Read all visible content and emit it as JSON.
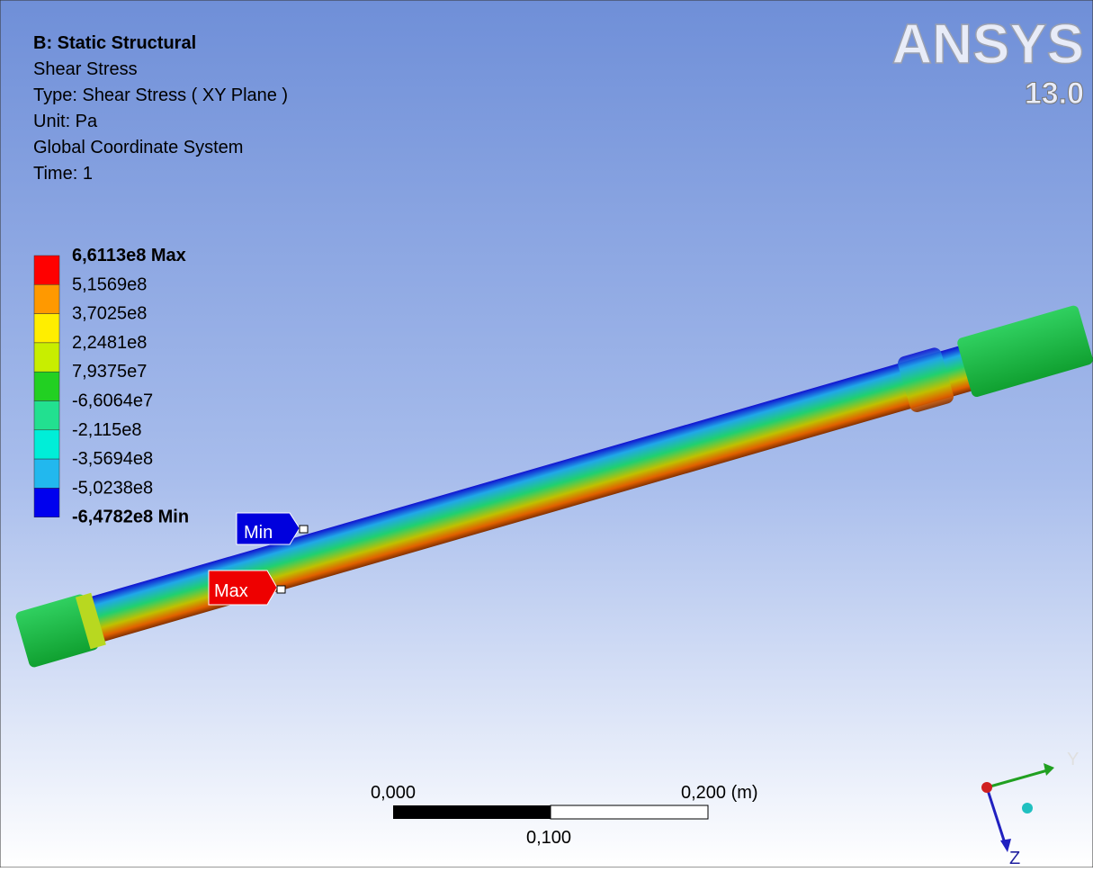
{
  "header": {
    "title": "B: Static Structural",
    "lines": [
      "Shear Stress",
      "Type: Shear Stress ( XY Plane )",
      "Unit: Pa",
      "Global Coordinate System",
      "Time: 1"
    ]
  },
  "logo": {
    "name": "ANSYS",
    "version": "13.0"
  },
  "legend": {
    "labels": [
      "6,6113e8 Max",
      "5,1569e8",
      "3,7025e8",
      "2,2481e8",
      "7,9375e7",
      "-6,6064e7",
      "-2,115e8",
      "-3,5694e8",
      "-5,0238e8",
      "-6,4782e8 Min"
    ],
    "colors": [
      "#ff0000",
      "#ff9900",
      "#ffee00",
      "#c8ee00",
      "#22d022",
      "#22e090",
      "#00eed8",
      "#22b8ee",
      "#0000ee"
    ]
  },
  "probes": {
    "min": "Min",
    "max": "Max"
  },
  "scale_bar": {
    "start": "0,000",
    "middle": "0,100",
    "end": "0,200 (m)"
  },
  "triad": {
    "y": "Y",
    "z": "Z"
  }
}
